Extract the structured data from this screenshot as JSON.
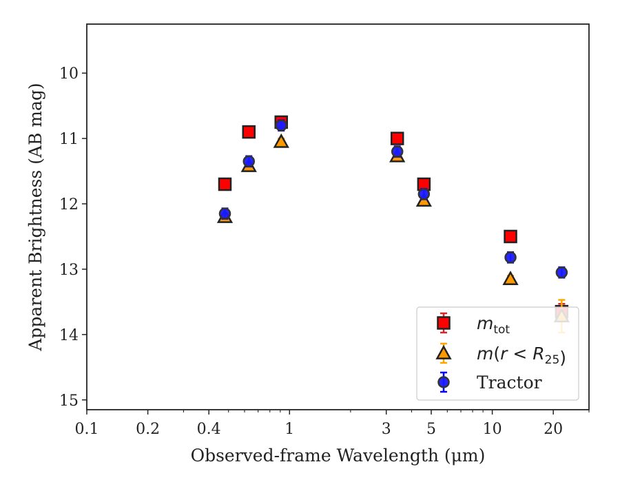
{
  "chart_data": {
    "type": "scatter",
    "xlabel": "Observed-frame Wavelength (μm)",
    "ylabel": "Apparent Brightness (AB mag)",
    "xscale": "log",
    "xlim": [
      0.1,
      30
    ],
    "ylim": [
      15.15,
      9.25
    ],
    "y_inverted": true,
    "x_major_ticks": [
      {
        "value": 0.1,
        "label": "0.1"
      },
      {
        "value": 0.2,
        "label": "0.2"
      },
      {
        "value": 0.4,
        "label": "0.4"
      },
      {
        "value": 1,
        "label": "1"
      },
      {
        "value": 3,
        "label": "3"
      },
      {
        "value": 5,
        "label": "5"
      },
      {
        "value": 10,
        "label": "10"
      },
      {
        "value": 20,
        "label": "20"
      }
    ],
    "x_minor_ticks": [
      0.3,
      0.5,
      0.6,
      0.7,
      0.8,
      0.9,
      2,
      4,
      6,
      7,
      8,
      9,
      30
    ],
    "y_ticks": [
      {
        "value": 10,
        "label": "10"
      },
      {
        "value": 11,
        "label": "11"
      },
      {
        "value": 12,
        "label": "12"
      },
      {
        "value": 13,
        "label": "13"
      },
      {
        "value": 14,
        "label": "14"
      },
      {
        "value": 15,
        "label": "15"
      }
    ],
    "legend_position": "lower-right",
    "series": [
      {
        "name_parts": [
          {
            "text": "m",
            "italic": true
          },
          {
            "text": "tot",
            "sub": true
          }
        ],
        "marker": "square",
        "color": "#ff0000",
        "edge_color": "#222222",
        "errorbar_color": "#d62728",
        "points": [
          {
            "x": 0.48,
            "y": 11.7,
            "err": 0.07
          },
          {
            "x": 0.63,
            "y": 10.9,
            "err": 0.07
          },
          {
            "x": 0.91,
            "y": 10.75,
            "err": 0.07
          },
          {
            "x": 3.4,
            "y": 11.0,
            "err": 0.06
          },
          {
            "x": 4.6,
            "y": 11.7,
            "err": 0.06
          },
          {
            "x": 12.3,
            "y": 12.5,
            "err": 0.07
          },
          {
            "x": 22.0,
            "y": 13.65,
            "err": 0.12
          }
        ]
      },
      {
        "name_parts": [
          {
            "text": "m",
            "italic": true
          },
          {
            "text": "(",
            "italic": false
          },
          {
            "text": "r",
            "italic": true
          },
          {
            "text": " < ",
            "italic": false
          },
          {
            "text": "R",
            "italic": true
          },
          {
            "text": "25",
            "sub": true
          },
          {
            "text": ")",
            "italic": false
          }
        ],
        "marker": "triangle",
        "color": "#ff9900",
        "edge_color": "#222222",
        "errorbar_color": "#ffa500",
        "points": [
          {
            "x": 0.48,
            "y": 12.2,
            "err": 0.05
          },
          {
            "x": 0.63,
            "y": 11.42,
            "err": 0.05
          },
          {
            "x": 0.91,
            "y": 11.05,
            "err": 0.05
          },
          {
            "x": 3.4,
            "y": 11.27,
            "err": 0.05
          },
          {
            "x": 4.6,
            "y": 11.95,
            "err": 0.05
          },
          {
            "x": 12.3,
            "y": 13.15,
            "err": 0.05
          },
          {
            "x": 22.0,
            "y": 13.72,
            "err": 0.25
          }
        ]
      },
      {
        "name": "Tractor",
        "marker": "circle",
        "color": "#1a1aff",
        "edge_color": "#333333",
        "errorbar_color": "#0000ff",
        "points": [
          {
            "x": 0.48,
            "y": 12.15,
            "err": 0.08
          },
          {
            "x": 0.63,
            "y": 11.35,
            "err": 0.08
          },
          {
            "x": 0.91,
            "y": 10.8,
            "err": 0.08
          },
          {
            "x": 3.4,
            "y": 11.2,
            "err": 0.08
          },
          {
            "x": 4.6,
            "y": 11.85,
            "err": 0.08
          },
          {
            "x": 12.3,
            "y": 12.82,
            "err": 0.08
          },
          {
            "x": 22.0,
            "y": 13.05,
            "err": 0.08
          }
        ]
      }
    ]
  }
}
